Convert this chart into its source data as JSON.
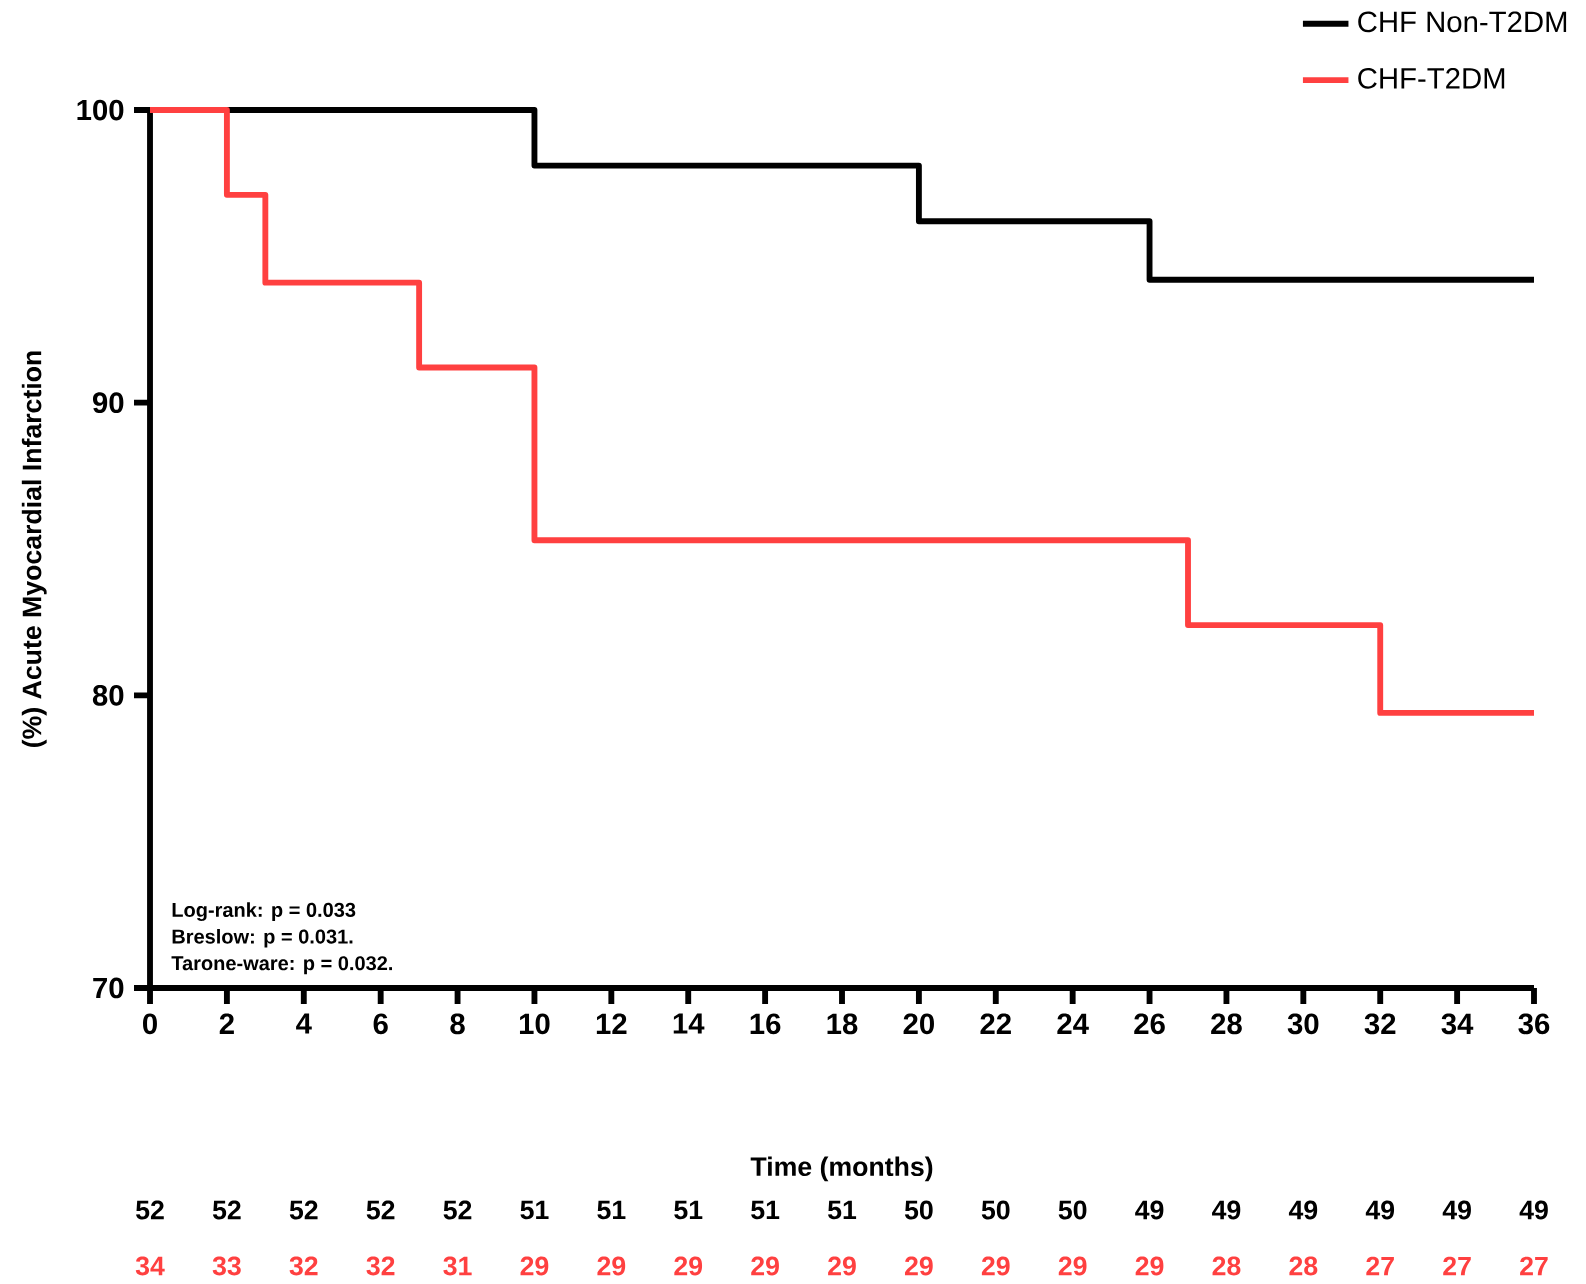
{
  "chart_data": {
    "type": "step",
    "xlabel": "Time  (months)",
    "ylabel": "(%) Acute Myocardial Infarction",
    "xlim": [
      0,
      36
    ],
    "ylim": [
      70,
      100
    ],
    "xticks": [
      0,
      2,
      4,
      6,
      8,
      10,
      12,
      14,
      16,
      18,
      20,
      22,
      24,
      26,
      28,
      30,
      32,
      34,
      36
    ],
    "yticks": [
      70,
      80,
      90,
      100
    ],
    "legend": "top right",
    "marker": "none",
    "line_style": "solid",
    "series": [
      {
        "name": "CHF Non-T2DM",
        "color": "#000000",
        "x": [
          0,
          10,
          20,
          26,
          36
        ],
        "values": [
          100,
          98.1,
          96.2,
          94.2,
          94.2
        ]
      },
      {
        "name": "CHF-T2DM",
        "color": "#ff4040",
        "x": [
          0,
          2,
          3,
          7,
          10,
          27,
          32,
          36
        ],
        "values": [
          100,
          97.1,
          94.1,
          91.2,
          85.3,
          82.4,
          79.4,
          79.4
        ]
      }
    ],
    "annotations": [
      "Log-rank: p = 0.033",
      "Breslow: p = 0.031.",
      "Tarone-ware: p = 0.032.",
      "52",
      "52",
      "52",
      "52",
      "52",
      "51",
      "51",
      "51",
      "51",
      "51",
      "50",
      "50",
      "50",
      "49",
      "49",
      "49",
      "49",
      "49",
      "49",
      "34",
      "33",
      "32",
      "32",
      "31",
      "29",
      "29",
      "29",
      "29",
      "29",
      "29",
      "29",
      "29",
      "29",
      "28",
      "28",
      "27",
      "27",
      "27"
    ]
  }
}
